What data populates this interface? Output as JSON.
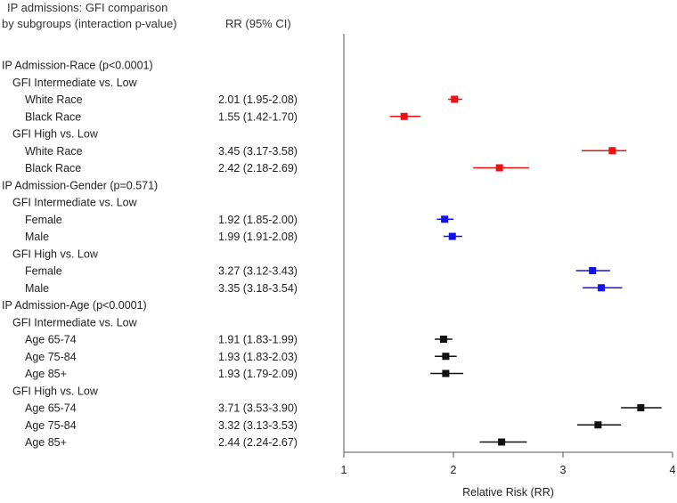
{
  "chart_data": {
    "type": "forest",
    "title_lines": [
      "IP admissions: GFI comparison",
      "by subgroups (interaction p-value)"
    ],
    "rr_column_header": "RR (95% CI)",
    "xlabel": "Relative Risk (RR)",
    "xlim": [
      1,
      4
    ],
    "x_ticks": [
      "1",
      "2",
      "3",
      "4"
    ],
    "reference_line": 1,
    "rows": [
      {
        "label": "IP Admission-Race (p<0.0001)",
        "indent": 0
      },
      {
        "label": "GFI Intermediate vs. Low",
        "indent": 1
      },
      {
        "label": "White Race",
        "indent": 2,
        "ci_text": "2.01 (1.95-2.08)",
        "rr": 2.01,
        "lo": 1.95,
        "hi": 2.08,
        "color": "#ee1111"
      },
      {
        "label": "Black Race",
        "indent": 2,
        "ci_text": "1.55 (1.42-1.70)",
        "rr": 1.55,
        "lo": 1.42,
        "hi": 1.7,
        "color": "#ee1111"
      },
      {
        "label": "GFI High vs. Low",
        "indent": 1
      },
      {
        "label": "White Race",
        "indent": 2,
        "ci_text": "3.45 (3.17-3.58)",
        "rr": 3.45,
        "lo": 3.17,
        "hi": 3.58,
        "color": "#ee1111"
      },
      {
        "label": "Black Race",
        "indent": 2,
        "ci_text": "2.42 (2.18-2.69)",
        "rr": 2.42,
        "lo": 2.18,
        "hi": 2.69,
        "color": "#ee1111"
      },
      {
        "label": "IP Admission-Gender (p=0.571)",
        "indent": 0
      },
      {
        "label": "GFI Intermediate vs. Low",
        "indent": 1
      },
      {
        "label": "Female",
        "indent": 2,
        "ci_text": "1.92 (1.85-2.00)",
        "rr": 1.92,
        "lo": 1.85,
        "hi": 2.0,
        "color": "#1111ee"
      },
      {
        "label": "Male",
        "indent": 2,
        "ci_text": "1.99 (1.91-2.08)",
        "rr": 1.99,
        "lo": 1.91,
        "hi": 2.08,
        "color": "#1111ee"
      },
      {
        "label": "GFI High vs. Low",
        "indent": 1
      },
      {
        "label": "Female",
        "indent": 2,
        "ci_text": "3.27 (3.12-3.43)",
        "rr": 3.27,
        "lo": 3.12,
        "hi": 3.43,
        "color": "#1111ee"
      },
      {
        "label": "Male",
        "indent": 2,
        "ci_text": "3.35 (3.18-3.54)",
        "rr": 3.35,
        "lo": 3.18,
        "hi": 3.54,
        "color": "#1111ee"
      },
      {
        "label": "IP Admission-Age (p<0.0001)",
        "indent": 0
      },
      {
        "label": "GFI Intermediate vs. Low",
        "indent": 1
      },
      {
        "label": "Age 65-74",
        "indent": 2,
        "ci_text": "1.91 (1.83-1.99)",
        "rr": 1.91,
        "lo": 1.83,
        "hi": 1.99,
        "color": "#111111"
      },
      {
        "label": "Age 75-84",
        "indent": 2,
        "ci_text": "1.93 (1.83-2.03)",
        "rr": 1.93,
        "lo": 1.83,
        "hi": 2.03,
        "color": "#111111"
      },
      {
        "label": "Age 85+",
        "indent": 2,
        "ci_text": "1.93 (1.79-2.09)",
        "rr": 1.93,
        "lo": 1.79,
        "hi": 2.09,
        "color": "#111111"
      },
      {
        "label": "GFI High vs. Low",
        "indent": 1
      },
      {
        "label": "Age 65-74",
        "indent": 2,
        "ci_text": "3.71 (3.53-3.90)",
        "rr": 3.71,
        "lo": 3.53,
        "hi": 3.9,
        "color": "#111111"
      },
      {
        "label": "Age 75-84",
        "indent": 2,
        "ci_text": "3.32 (3.13-3.53)",
        "rr": 3.32,
        "lo": 3.13,
        "hi": 3.53,
        "color": "#111111"
      },
      {
        "label": "Age 85+",
        "indent": 2,
        "ci_text": "2.44 (2.24-2.67)",
        "rr": 2.44,
        "lo": 2.24,
        "hi": 2.67,
        "color": "#111111"
      }
    ]
  }
}
